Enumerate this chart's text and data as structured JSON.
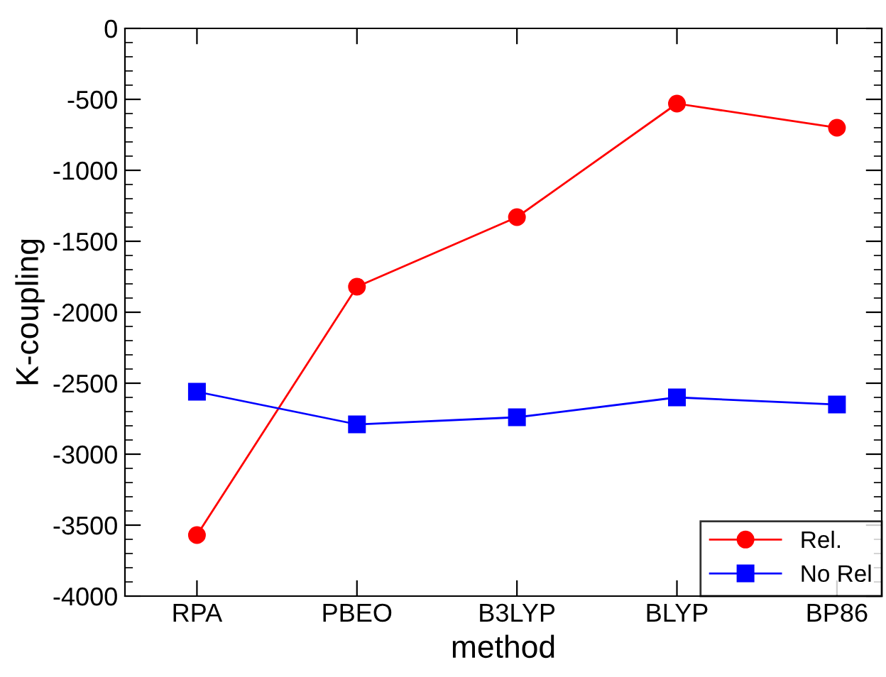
{
  "chart_data": {
    "type": "line",
    "xlabel": "method",
    "ylabel": "K-coupling",
    "categories": [
      "RPA",
      "PBEO",
      "B3LYP",
      "BLYP",
      "BP86"
    ],
    "series": [
      {
        "name": "Rel.",
        "color": "#ff0000",
        "marker": "circle",
        "values": [
          -3570,
          -1820,
          -1330,
          -530,
          -700
        ]
      },
      {
        "name": "No Rel",
        "color": "#0000ff",
        "marker": "square",
        "values": [
          -2560,
          -2790,
          -2740,
          -2600,
          -2650
        ]
      }
    ],
    "ylim": [
      -4000,
      0
    ],
    "yticks": [
      -4000,
      -3500,
      -3000,
      -2500,
      -2000,
      -1500,
      -1000,
      -500,
      0
    ],
    "grid": false,
    "legend": "bottom right",
    "line_style": "solid"
  }
}
